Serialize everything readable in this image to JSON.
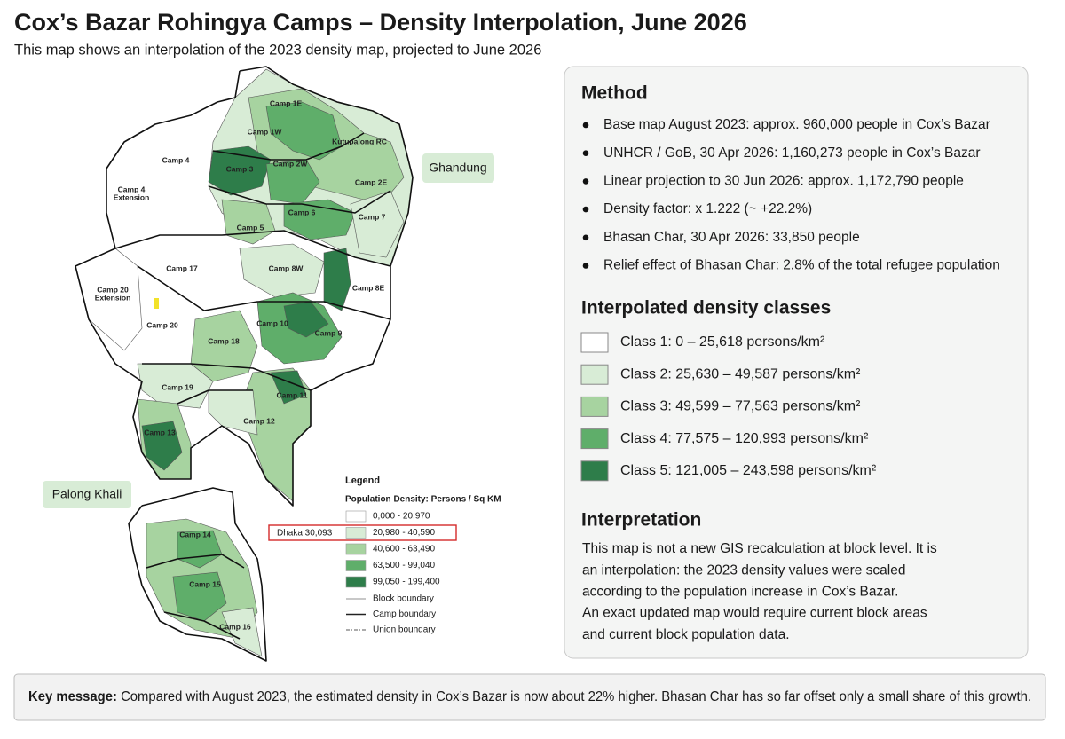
{
  "header": {
    "title": "Cox’s Bazar Rohingya Camps – Density Interpolation, June 2026",
    "subtitle": "This map shows an interpolation of the 2023 density map, projected to June 2026"
  },
  "map": {
    "camps": [
      "Camp 1E",
      "Camp 1W",
      "Kutupalong RC",
      "Camp 3",
      "Camp 2W",
      "Camp 2E",
      "Camp 4",
      "Camp 4",
      "Extension",
      "Camp 6",
      "Camp 7",
      "Camp 5",
      "Camp 17",
      "Camp 8W",
      "Camp 8E",
      "Camp 20",
      "Extension",
      "Camp 20",
      "Camp 10",
      "Camp 9",
      "Camp 18",
      "Camp 19",
      "Camp 11",
      "Camp 12",
      "Camp 13",
      "Camp 14",
      "Camp 15",
      "Camp 16"
    ],
    "areas": [
      "Ghandung",
      "Palong Khali"
    ],
    "annotation": "Dhaka 30,093",
    "legend": {
      "title": "Legend",
      "subtitle": "Population Density: Persons / Sq KM",
      "classes": [
        {
          "label": "0,000 - 20,970",
          "color": "#ffffff"
        },
        {
          "label": "20,980 - 40,590",
          "color": "#d8ecd6"
        },
        {
          "label": "40,600 - 63,490",
          "color": "#a7d3a0"
        },
        {
          "label": "63,500 - 99,040",
          "color": "#5fae6a"
        },
        {
          "label": "99,050 - 199,400",
          "color": "#2e7d4a"
        }
      ],
      "lines": [
        "Block boundary",
        "Camp boundary",
        "Union boundary"
      ]
    }
  },
  "method": {
    "title": "Method",
    "items": [
      "Base map August 2023: approx. 960,000 people in Cox’s Bazar",
      "UNHCR / GoB, 30 Apr 2026: 1,160,273 people in Cox’s Bazar",
      "Linear projection to 30 Jun 2026: approx. 1,172,790 people",
      "Density factor: x 1.222  (~ +22.2%)",
      "Bhasan Char, 30 Apr 2026: 33,850 people",
      "Relief effect of Bhasan Char: 2.8% of the total refugee population"
    ]
  },
  "classes": {
    "title": "Interpolated density classes",
    "items": [
      {
        "label": "Class 1: 0 – 25,618 persons/km²",
        "color": "#ffffff"
      },
      {
        "label": "Class 2: 25,630 – 49,587 persons/km²",
        "color": "#d8ecd6"
      },
      {
        "label": "Class 3: 49,599 – 77,563 persons/km²",
        "color": "#a7d3a0"
      },
      {
        "label": "Class 4: 77,575 – 120,993 persons/km²",
        "color": "#5fae6a"
      },
      {
        "label": "Class 5: 121,005 – 243,598 persons/km²",
        "color": "#2e7d4a"
      }
    ]
  },
  "interpretation": {
    "title": "Interpretation",
    "lines": [
      "This map is not a new GIS recalculation at block level. It is",
      "an interpolation: the 2023 density values were scaled",
      "according to the population increase in Cox’s Bazar.",
      "An exact updated map would require current block areas",
      "and current block population data."
    ]
  },
  "key_message": {
    "label": "Key message:",
    "text": "Compared with August 2023, the estimated density in Cox’s Bazar is now about 22% higher. Bhasan Char has so far offset only a small share of this growth."
  }
}
